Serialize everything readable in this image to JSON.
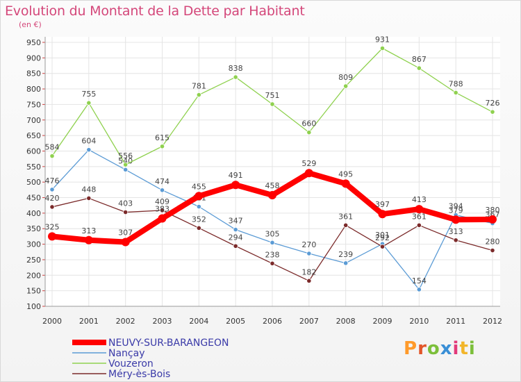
{
  "chart_data": {
    "type": "line",
    "title": "Evolution du Montant de la Dette par Habitant",
    "subtitle": "(en €)",
    "x": [
      "2000",
      "2001",
      "2002",
      "2003",
      "2004",
      "2005",
      "2006",
      "2007",
      "2008",
      "2009",
      "2010",
      "2011",
      "2012"
    ],
    "ylim": [
      100,
      950
    ],
    "yticks": [
      100,
      150,
      200,
      250,
      300,
      350,
      400,
      450,
      500,
      550,
      600,
      650,
      700,
      750,
      800,
      850,
      900,
      950
    ],
    "grid": true,
    "legend_position": "bottom-left",
    "series": [
      {
        "name": "NEUVY-SUR-BARANGEON",
        "color": "#ff0000",
        "values": [
          325,
          313,
          307,
          383,
          455,
          491,
          458,
          529,
          495,
          397,
          413,
          379,
          380
        ],
        "labels": [
          "325",
          "313",
          "307",
          "383",
          "455",
          "491",
          "458",
          "529",
          "495",
          "397",
          "413",
          "379",
          "380"
        ]
      },
      {
        "name": "Nançay",
        "color": "#5b9bd5",
        "values": [
          476,
          604,
          540,
          474,
          421,
          347,
          305,
          270,
          239,
          301,
          154,
          394,
          367
        ],
        "labels": [
          "476",
          "604",
          "540",
          "474",
          "421",
          "347",
          "305",
          "270",
          "239",
          "301",
          "154",
          "394",
          "367"
        ]
      },
      {
        "name": "Vouzeron",
        "color": "#8fd14f",
        "values": [
          584,
          755,
          556,
          615,
          781,
          838,
          751,
          660,
          809,
          931,
          867,
          788,
          726
        ],
        "labels": [
          "584",
          "755",
          "556",
          "615",
          "781",
          "838",
          "751",
          "660",
          "809",
          "931",
          "867",
          "788",
          "726"
        ]
      },
      {
        "name": "Méry-ès-Bois",
        "color": "#7b2a2a",
        "values": [
          420,
          448,
          403,
          409,
          352,
          294,
          238,
          182,
          361,
          292,
          361,
          313,
          280
        ],
        "labels": [
          "420",
          "448",
          "403",
          "409",
          "352",
          "294",
          "238",
          "182",
          "361",
          "292",
          "361",
          "313",
          "280"
        ]
      }
    ]
  },
  "legend": {
    "items": [
      "NEUVY-SUR-BARANGEON",
      "Nançay",
      "Vouzeron",
      "Méry-ès-Bois"
    ]
  },
  "logo": {
    "text": "Proxiti"
  },
  "colors": {
    "title": "#d4477a",
    "legend_text": "#3a3aa8"
  }
}
